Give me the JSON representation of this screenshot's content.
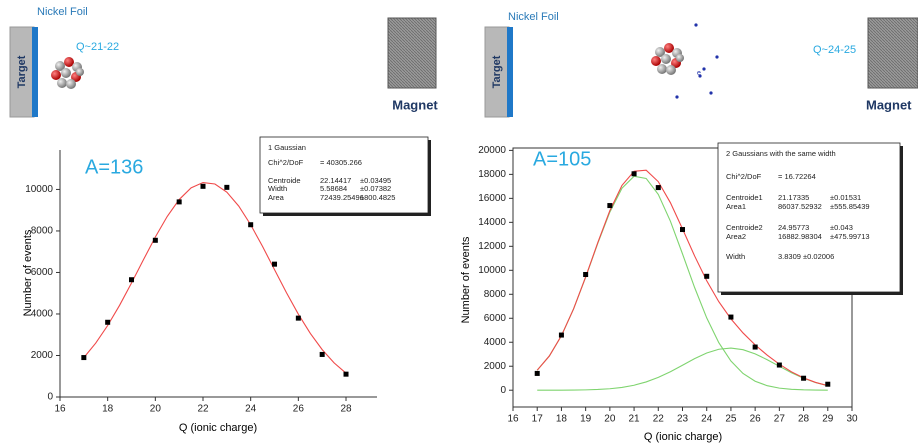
{
  "diagrams": [
    {
      "foil": "Nickel Foil",
      "target": "Target",
      "charge": "Q~21-22",
      "magnet": "Magnet"
    },
    {
      "foil": "Nickel Foil",
      "target": "Target",
      "electron": "e",
      "charge": "Q~24-25",
      "magnet": "Magnet"
    }
  ],
  "chart_data": [
    {
      "type": "scatter",
      "title": "A=136",
      "xlabel": "Q (ionic charge)",
      "ylabel": "Number of events",
      "xlim": [
        16,
        29.3
      ],
      "xticks": [
        16,
        18,
        20,
        22,
        24,
        26,
        28
      ],
      "ylim": [
        0,
        11900
      ],
      "yticks": [
        0,
        2000,
        4000,
        6000,
        8000,
        10000
      ],
      "series": [
        {
          "color": "#000000",
          "x": [
            17,
            18,
            19,
            20,
            21,
            22,
            23,
            24,
            25,
            26,
            27,
            28
          ],
          "values": [
            1900,
            3600,
            5650,
            7550,
            9400,
            10150,
            10100,
            8300,
            6400,
            3800,
            2050,
            1100
          ]
        },
        {
          "type": "line",
          "color": "#f04a4a",
          "x": [
            17,
            17.5,
            18,
            18.5,
            19,
            19.5,
            20,
            20.5,
            21,
            21.5,
            22,
            22.5,
            23,
            23.5,
            24,
            24.5,
            25,
            25.5,
            26,
            26.5,
            27,
            27.5,
            28
          ],
          "values": [
            1898,
            2597,
            3444,
            4418,
            5492,
            6611,
            7707,
            8702,
            9513,
            10075,
            10332,
            10262,
            9871,
            9197,
            8298,
            7249,
            6135,
            5028,
            3989,
            3068,
            2283,
            1645,
            1149
          ]
        }
      ],
      "fit_box": {
        "title": "1 Gaussian",
        "rows": [
          [
            "Chi^2/DoF",
            "= 40305.266"
          ],
          [
            "Centroide",
            "22.14417",
            "±0.03495"
          ],
          [
            "Width",
            "5.58684",
            "±0.07382"
          ],
          [
            "Area",
            "72439.25496",
            "±800.4825"
          ]
        ]
      }
    },
    {
      "type": "scatter",
      "title": "A=105",
      "xlabel": "Q (ionic charge)",
      "ylabel": "Number of events",
      "xlim": [
        16,
        30
      ],
      "xticks": [
        16,
        17,
        18,
        19,
        20,
        21,
        22,
        23,
        24,
        25,
        26,
        27,
        28,
        29,
        30
      ],
      "ylim": [
        -1400,
        20200
      ],
      "yticks": [
        0,
        2000,
        4000,
        6000,
        8000,
        10000,
        12000,
        14000,
        16000,
        18000,
        20000
      ],
      "series": [
        {
          "color": "#000000",
          "x": [
            17,
            18,
            19,
            20,
            21,
            22,
            23,
            24,
            25,
            26,
            27,
            28,
            29
          ],
          "values": [
            1400,
            4600,
            9650,
            15400,
            18050,
            16900,
            13400,
            9500,
            6100,
            3600,
            2100,
            1000,
            500
          ]
        },
        {
          "type": "line",
          "color": "#7fd46f",
          "x": [
            17,
            17.5,
            18,
            18.5,
            19,
            19.5,
            20,
            20.5,
            21,
            21.5,
            22,
            22.5,
            23,
            23.5,
            24,
            24.5,
            25,
            25.5,
            26,
            26.5,
            27,
            27.5,
            28,
            28.5,
            29
          ],
          "values": [
            1670,
            2852,
            4544,
            6768,
            9415,
            12238,
            14856,
            16847,
            17847,
            17660,
            16326,
            14096,
            11370,
            8566,
            6030,
            3963,
            2435,
            1398,
            749,
            375,
            175,
            77,
            31,
            12,
            4
          ]
        },
        {
          "type": "line",
          "color": "#7fd46f",
          "x": [
            17,
            17.5,
            18,
            18.5,
            19,
            19.5,
            20,
            20.5,
            21,
            21.5,
            22,
            22.5,
            23,
            23.5,
            24,
            24.5,
            25,
            25.5,
            26,
            26.5,
            27,
            27.5,
            28,
            28.5,
            29
          ],
          "values": [
            1,
            2,
            5,
            12,
            28,
            61,
            123,
            234,
            415,
            689,
            1067,
            1543,
            2085,
            2632,
            3102,
            3417,
            3515,
            3378,
            3032,
            2543,
            1992,
            1457,
            996,
            636,
            379
          ]
        },
        {
          "type": "line",
          "color": "#f04a4a",
          "x": [
            17,
            17.5,
            18,
            18.5,
            19,
            19.5,
            20,
            20.5,
            21,
            21.5,
            22,
            22.5,
            23,
            23.5,
            24,
            24.5,
            25,
            25.5,
            26,
            26.5,
            27,
            27.5,
            28,
            28.5,
            29
          ],
          "values": [
            1671,
            2854,
            4549,
            6780,
            9443,
            12299,
            14979,
            17081,
            18262,
            18349,
            17393,
            15639,
            13455,
            11198,
            9132,
            7380,
            5950,
            4776,
            3781,
            2918,
            2167,
            1534,
            1027,
            648,
            383
          ]
        }
      ],
      "fit_box": {
        "title": "2 Gaussians with the same width",
        "rows": [
          [
            "Chi^2/DoF",
            "= 16.72264"
          ],
          [
            "Centroide1",
            "21.17335",
            "±0.01531"
          ],
          [
            "Area1",
            "86037.52932",
            "±555.85439"
          ],
          [
            "Centroide2",
            "24.95773",
            "±0.043"
          ],
          [
            "Area2",
            "16882.98304",
            "±475.99713"
          ],
          [
            "Width",
            "3.8309 ±0.02006"
          ]
        ]
      }
    }
  ]
}
